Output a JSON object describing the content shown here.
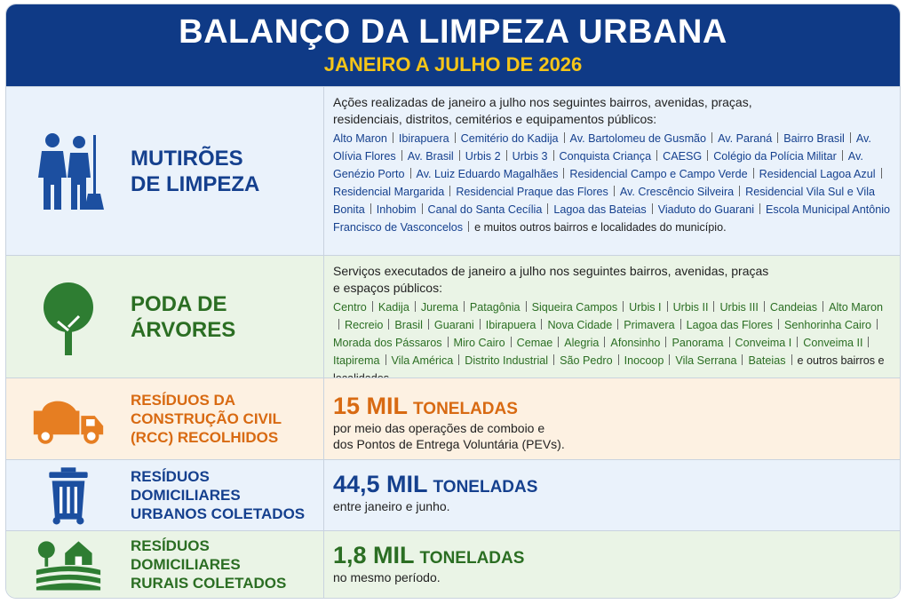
{
  "header": {
    "title": "BALANÇO DA LIMPEZA URBANA",
    "subtitle": "JANEIRO A JULHO DE 2026"
  },
  "sections": [
    {
      "title_lines": [
        "MUTIRÕES",
        "DE LIMPEZA"
      ],
      "intro": "Ações realizadas de janeiro a julho nos seguintes bairros, avenidas, praças, residenciais, distritos, cemitérios e equipamentos públicos:",
      "places": [
        "Alto Maron",
        "Ibirapuera",
        "Cemitério do Kadija",
        "Av. Bartolomeu de Gusmão",
        "Av. Paraná",
        "Bairro Brasil",
        "Av. Olívia Flores",
        "Av. Brasil",
        "Urbis 2",
        "Urbis 3",
        "Conquista Criança",
        "CAESG",
        "Colégio da Polícia Militar",
        "Av. Genézio Porto",
        "Av. Luiz Eduardo Magalhães",
        "Residencial Campo e Campo Verde",
        "Residencial Lagoa Azul",
        "Residencial Margarida",
        "Residencial Praque das Flores",
        "Av. Crescêncio Silveira",
        "Residencial Vila Sul e Vila Bonita",
        "Inhobim",
        "Canal do Santa Cecília",
        "Lagoa das Bateias",
        "Viaduto do Guarani",
        "Escola Municipal Antônio Francisco de Vasconcelos"
      ],
      "closing": "e muitos outros bairros e localidades do município."
    },
    {
      "title_lines": [
        "PODA DE",
        "ÁRVORES"
      ],
      "intro": "Serviços executados de janeiro a julho nos seguintes bairros, avenidas, praças e espaços públicos:",
      "places": [
        "Centro",
        "Kadija",
        "Jurema",
        "Patagônia",
        "Siqueira Campos",
        "Urbis I",
        "Urbis II",
        "Urbis III",
        "Candeias",
        "Alto Maron",
        "Recreio",
        "Brasil",
        "Guarani",
        "Ibirapuera",
        "Nova Cidade",
        "Primavera",
        "Lagoa das Flores",
        "Senhorinha Cairo",
        "Morada dos Pássaros",
        "Miro Cairo",
        "Cemae",
        "Alegria",
        "Afonsinho",
        "Panorama",
        "Conveima I",
        "Conveima II",
        "Itapirema",
        "Vila América",
        "Distrito Industrial",
        "São Pedro",
        "Inocoop",
        "Vila Serrana",
        "Bateias"
      ],
      "closing": "e outros bairros e localidades."
    }
  ],
  "stats": [
    {
      "title_lines": [
        "RESÍDUOS DA",
        "CONSTRUÇÃO CIVIL",
        "(RCC) RECOLHIDOS"
      ],
      "amount": "15 MIL",
      "unit": "TONELADAS",
      "note_lines": [
        "por meio das operações de comboio e",
        "dos Pontos de Entrega Voluntária (PEVs)."
      ]
    },
    {
      "title_lines": [
        "RESÍDUOS",
        "DOMICILIARES",
        "URBANOS COLETADOS"
      ],
      "amount": "44,5 MIL",
      "unit": "TONELADAS",
      "note_lines": [
        "entre janeiro e junho."
      ]
    },
    {
      "title_lines": [
        "RESÍDUOS",
        "DOMICILIARES",
        "RURAIS COLETADOS"
      ],
      "amount": "1,8 MIL",
      "unit": "TONELADAS",
      "note_lines": [
        "no mesmo período."
      ]
    }
  ]
}
